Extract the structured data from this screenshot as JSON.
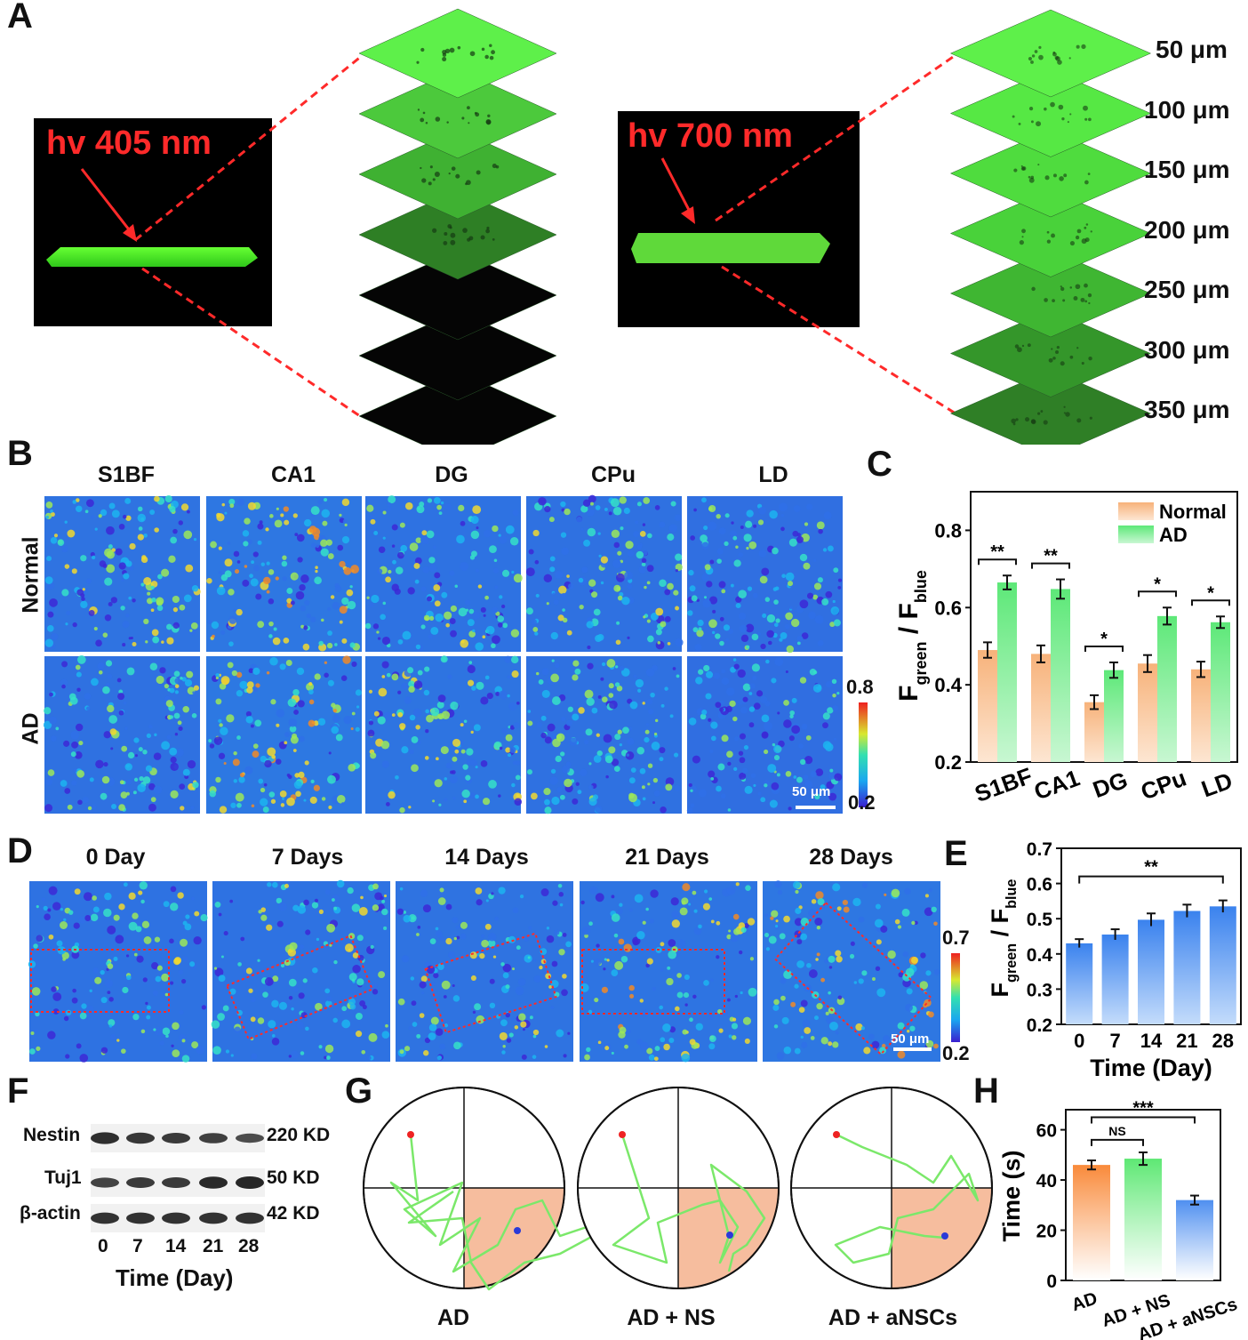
{
  "panels": {
    "A": "A",
    "B": "B",
    "C": "C",
    "D": "D",
    "E": "E",
    "F": "F",
    "G": "G",
    "H": "H"
  },
  "panel_a": {
    "left_label": "hv 405 nm",
    "right_label": "hv 700 nm",
    "depths": [
      "50 μm",
      "100 μm",
      "150 μm",
      "200 μm",
      "250 μm",
      "300 μm",
      "350 μm"
    ]
  },
  "panel_b": {
    "columns": [
      "S1BF",
      "CA1",
      "DG",
      "CPu",
      "LD"
    ],
    "rows": [
      "Normal",
      "AD"
    ],
    "colorbar": {
      "max": "0.8",
      "min": "0.2"
    },
    "scalebar": "50 μm"
  },
  "panel_d": {
    "columns": [
      "0 Day",
      "7 Days",
      "14 Days",
      "21 Days",
      "28 Days"
    ],
    "colorbar": {
      "max": "0.7",
      "min": "0.2"
    },
    "scalebar": "50 μm"
  },
  "panel_f": {
    "bands": [
      {
        "name": "Nestin",
        "size": "220 KD"
      },
      {
        "name": "Tuj1",
        "size": "50 KD"
      },
      {
        "name": "β-actin",
        "size": "42 KD"
      }
    ],
    "lanes": [
      "0",
      "7",
      "14",
      "21",
      "28"
    ],
    "xlabel": "Time (Day)"
  },
  "panel_g": {
    "labels": [
      "AD",
      "AD + NS",
      "AD + aNSCs"
    ]
  },
  "chart_data": [
    {
      "id": "C",
      "type": "bar",
      "categories": [
        "S1BF",
        "CA1",
        "DG",
        "CPu",
        "LD"
      ],
      "series": [
        {
          "name": "Normal",
          "values": [
            0.49,
            0.48,
            0.355,
            0.455,
            0.44
          ],
          "errors": [
            0.02,
            0.022,
            0.018,
            0.022,
            0.02
          ],
          "color": "#f7b27a"
        },
        {
          "name": "AD",
          "values": [
            0.665,
            0.648,
            0.438,
            0.578,
            0.562
          ],
          "errors": [
            0.018,
            0.025,
            0.02,
            0.022,
            0.015
          ],
          "color": "#6fe88a"
        }
      ],
      "significance": [
        "**",
        "**",
        "*",
        "*",
        "*"
      ],
      "ylim": [
        0.2,
        0.9
      ],
      "yticks": [
        "0.2",
        "0.4",
        "0.6",
        "0.8"
      ],
      "ylabel_main": "F",
      "ylabel_sub1": "green",
      "ylabel_mid": " / F",
      "ylabel_sub2": "blue",
      "legend_position": "top-right"
    },
    {
      "id": "E",
      "type": "bar",
      "categories": [
        "0",
        "7",
        "14",
        "21",
        "28"
      ],
      "values": [
        0.43,
        0.455,
        0.497,
        0.522,
        0.535
      ],
      "errors": [
        0.012,
        0.015,
        0.018,
        0.018,
        0.017
      ],
      "ylim": [
        0.2,
        0.7
      ],
      "yticks": [
        "0.2",
        "0.3",
        "0.4",
        "0.5",
        "0.6",
        "0.7"
      ],
      "xlabel": "Time (Day)",
      "ylabel_main": "F",
      "ylabel_sub1": "green",
      "ylabel_mid": " / F",
      "ylabel_sub2": "blue",
      "significance": "**",
      "color": "#4f8ff0"
    },
    {
      "id": "H",
      "type": "bar",
      "categories": [
        "AD",
        "AD + NS",
        "AD + aNSCs"
      ],
      "values": [
        46,
        48.5,
        32
      ],
      "errors": [
        1.8,
        2.5,
        1.8
      ],
      "colors": [
        "#f98a3a",
        "#5ee874",
        "#4f8ff0"
      ],
      "ylim": [
        0,
        68
      ],
      "yticks": [
        "0",
        "20",
        "40",
        "60"
      ],
      "ylabel": "Time (s)",
      "significance": [
        "NS",
        "***"
      ]
    }
  ]
}
